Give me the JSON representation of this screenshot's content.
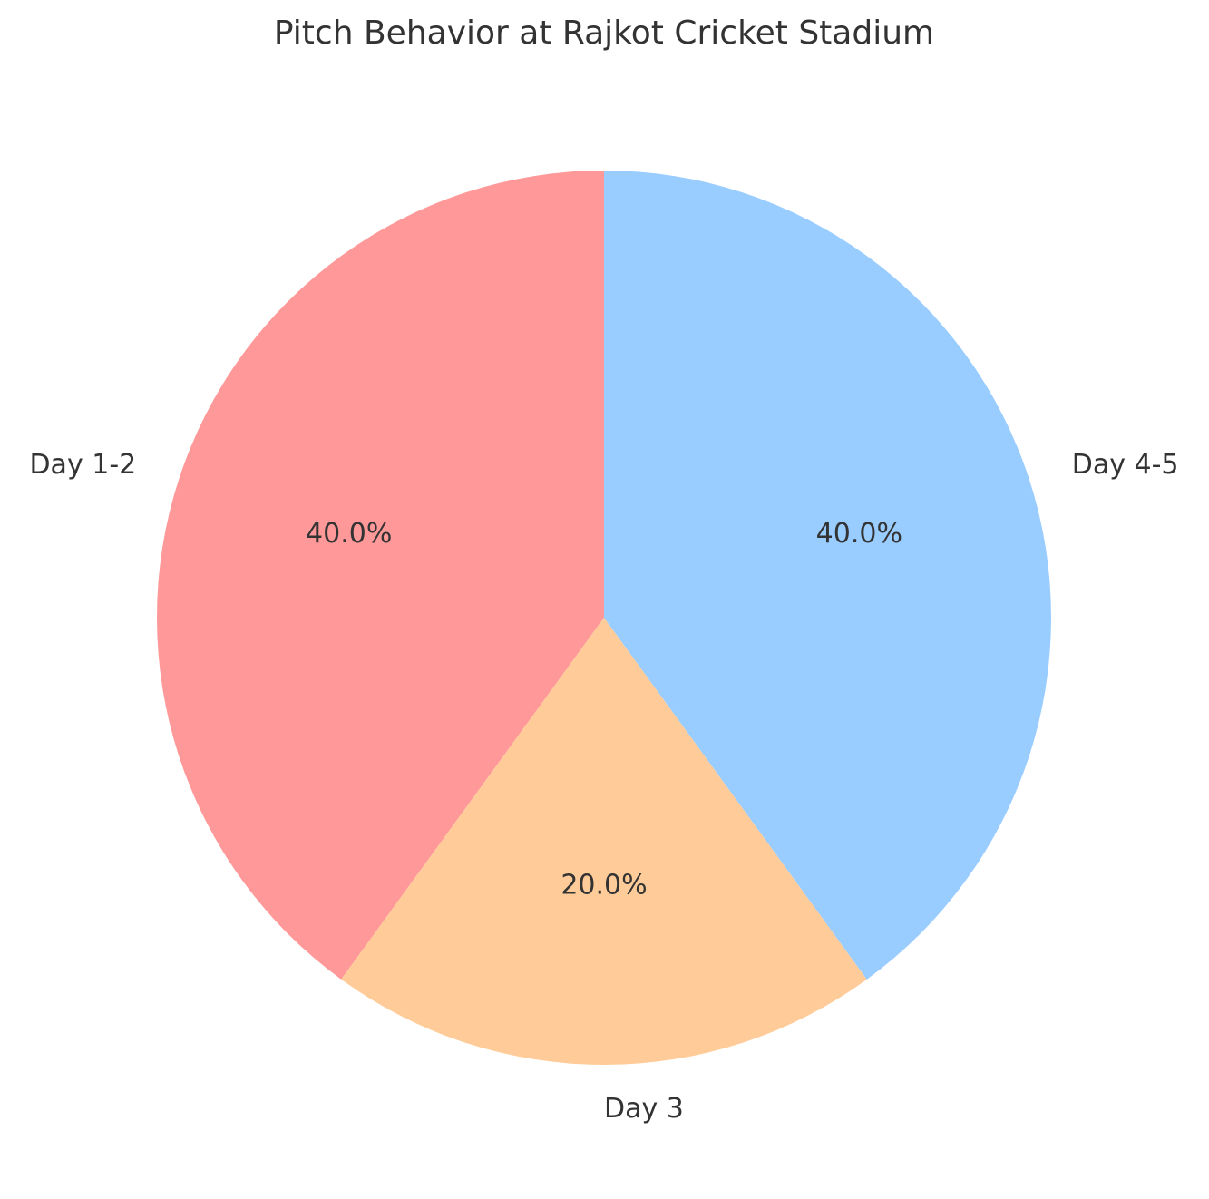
{
  "chart_data": {
    "type": "pie",
    "title": "Pitch Behavior at Rajkot Cricket Stadium",
    "categories": [
      "Day 1-2",
      "Day 3",
      "Day 4-5"
    ],
    "values": [
      40,
      20,
      40
    ],
    "value_labels": [
      "40.0%",
      "20.0%",
      "40.0%"
    ],
    "colors": [
      "#ff9999",
      "#ffcc99",
      "#99ccff"
    ],
    "start_angle": 90
  }
}
